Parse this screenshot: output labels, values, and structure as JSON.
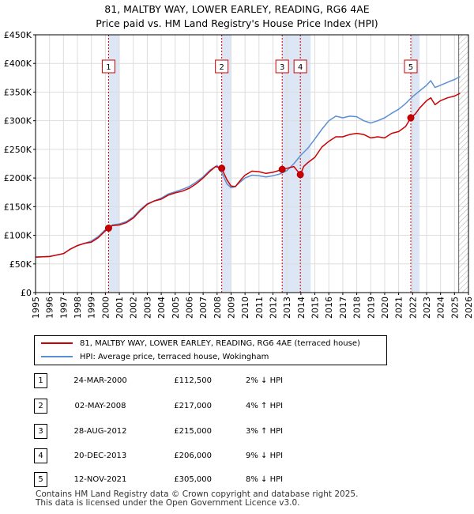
{
  "title_line1": "81, MALTBY WAY, LOWER EARLEY, READING, RG6 4AE",
  "title_line2": "Price paid vs. HM Land Registry's House Price Index (HPI)",
  "colors": {
    "property": "#cc0000",
    "hpi": "#5b8fd4",
    "shade": "#dde6f5",
    "vline": "#cc0000",
    "hatch": "#999999",
    "grid": "#dddddd"
  },
  "chart_data": {
    "type": "line",
    "xlim": [
      1995,
      2026
    ],
    "ylim": [
      0,
      450000
    ],
    "x_ticks": [
      1995,
      1996,
      1997,
      1998,
      1999,
      2000,
      2001,
      2002,
      2003,
      2004,
      2005,
      2006,
      2007,
      2008,
      2009,
      2010,
      2011,
      2012,
      2013,
      2014,
      2015,
      2016,
      2017,
      2018,
      2019,
      2020,
      2021,
      2022,
      2023,
      2024,
      2025,
      2026
    ],
    "y_ticks": [
      0,
      50000,
      100000,
      150000,
      200000,
      250000,
      300000,
      350000,
      400000,
      450000
    ],
    "y_tick_labels": [
      "£0",
      "£50K",
      "£100K",
      "£150K",
      "£200K",
      "£250K",
      "£300K",
      "£350K",
      "£400K",
      "£450K"
    ],
    "forecast_start": 2025.3,
    "shaded_spans": [
      [
        2000.23,
        2001.0
      ],
      [
        2008.33,
        2009.0
      ],
      [
        2012.66,
        2014.7
      ],
      [
        2021.87,
        2022.5
      ]
    ],
    "series": [
      {
        "name": "81, MALTBY WAY, LOWER EARLEY, READING, RG6 4AE (terraced house)",
        "x": [
          1995.0,
          1996.0,
          1997.0,
          1997.5,
          1998.0,
          1998.5,
          1999.0,
          1999.5,
          2000.0,
          2000.23,
          2000.5,
          2001.0,
          2001.5,
          2002.0,
          2002.5,
          2003.0,
          2003.5,
          2004.0,
          2004.5,
          2005.0,
          2005.5,
          2006.0,
          2006.5,
          2007.0,
          2007.5,
          2007.9,
          2008.33,
          2008.7,
          2009.0,
          2009.3,
          2009.7,
          2010.0,
          2010.5,
          2011.0,
          2011.5,
          2012.0,
          2012.4,
          2012.66,
          2013.0,
          2013.5,
          2013.96,
          2014.2,
          2014.5,
          2015.0,
          2015.5,
          2016.0,
          2016.5,
          2017.0,
          2017.5,
          2018.0,
          2018.5,
          2019.0,
          2019.5,
          2020.0,
          2020.5,
          2021.0,
          2021.5,
          2021.87,
          2022.2,
          2022.5,
          2023.0,
          2023.3,
          2023.6,
          2024.0,
          2024.5,
          2025.0,
          2025.4
        ],
        "y": [
          62000,
          63000,
          68000,
          76000,
          82000,
          86000,
          88000,
          96000,
          108000,
          112500,
          117000,
          118000,
          122000,
          130000,
          143000,
          154000,
          160000,
          163000,
          170000,
          174000,
          177000,
          182000,
          190000,
          200000,
          212000,
          220000,
          217000,
          197000,
          186000,
          185000,
          197000,
          205000,
          212000,
          211000,
          208000,
          210000,
          213000,
          215000,
          217000,
          220000,
          206000,
          220000,
          227000,
          236000,
          254000,
          264000,
          272000,
          272000,
          276000,
          278000,
          276000,
          270000,
          272000,
          270000,
          278000,
          281000,
          290000,
          305000,
          312000,
          322000,
          335000,
          340000,
          328000,
          335000,
          340000,
          343000,
          348000
        ]
      },
      {
        "name": "HPI: Average price, terraced house, Wokingham",
        "x": [
          1995.0,
          1996.0,
          1997.0,
          1997.5,
          1998.0,
          1998.5,
          1999.0,
          1999.5,
          2000.0,
          2000.5,
          2001.0,
          2001.5,
          2002.0,
          2002.5,
          2003.0,
          2003.5,
          2004.0,
          2004.5,
          2005.0,
          2005.5,
          2006.0,
          2006.5,
          2007.0,
          2007.5,
          2008.0,
          2008.33,
          2008.7,
          2009.0,
          2009.3,
          2009.7,
          2010.0,
          2010.5,
          2011.0,
          2011.5,
          2012.0,
          2012.5,
          2013.0,
          2013.5,
          2014.0,
          2014.5,
          2015.0,
          2015.5,
          2016.0,
          2016.5,
          2017.0,
          2017.5,
          2018.0,
          2018.5,
          2019.0,
          2019.5,
          2020.0,
          2020.5,
          2021.0,
          2021.5,
          2022.0,
          2022.5,
          2023.0,
          2023.3,
          2023.6,
          2024.0,
          2024.5,
          2025.0,
          2025.4
        ],
        "y": [
          62000,
          63000,
          68000,
          76000,
          82000,
          86000,
          90000,
          98000,
          110000,
          118000,
          120000,
          124000,
          132000,
          145000,
          155000,
          160000,
          165000,
          172000,
          176000,
          180000,
          185000,
          193000,
          202000,
          214000,
          222000,
          210000,
          190000,
          183000,
          185000,
          194000,
          200000,
          205000,
          204000,
          202000,
          204000,
          207000,
          213000,
          225000,
          240000,
          252000,
          268000,
          285000,
          300000,
          308000,
          305000,
          308000,
          307000,
          300000,
          296000,
          300000,
          305000,
          313000,
          320000,
          330000,
          342000,
          352000,
          362000,
          370000,
          358000,
          362000,
          367000,
          372000,
          377000
        ]
      }
    ],
    "sales": [
      {
        "num": "1",
        "x": 2000.23,
        "price": 112500
      },
      {
        "num": "2",
        "x": 2008.33,
        "price": 217000
      },
      {
        "num": "3",
        "x": 2012.66,
        "price": 215000
      },
      {
        "num": "4",
        "x": 2013.96,
        "price": 206000
      },
      {
        "num": "5",
        "x": 2021.87,
        "price": 305000
      }
    ]
  },
  "legend": {
    "property": "81, MALTBY WAY, LOWER EARLEY, READING, RG6 4AE (terraced house)",
    "hpi": "HPI: Average price, terraced house, Wokingham"
  },
  "transactions": [
    {
      "num": "1",
      "date": "24-MAR-2000",
      "price": "£112,500",
      "hpi": "2% ↓ HPI"
    },
    {
      "num": "2",
      "date": "02-MAY-2008",
      "price": "£217,000",
      "hpi": "4% ↑ HPI"
    },
    {
      "num": "3",
      "date": "28-AUG-2012",
      "price": "£215,000",
      "hpi": "3% ↑ HPI"
    },
    {
      "num": "4",
      "date": "20-DEC-2013",
      "price": "£206,000",
      "hpi": "9% ↓ HPI"
    },
    {
      "num": "5",
      "date": "12-NOV-2021",
      "price": "£305,000",
      "hpi": "8% ↓ HPI"
    }
  ],
  "footer_line1": "Contains HM Land Registry data © Crown copyright and database right 2025.",
  "footer_line2": "This data is licensed under the Open Government Licence v3.0."
}
